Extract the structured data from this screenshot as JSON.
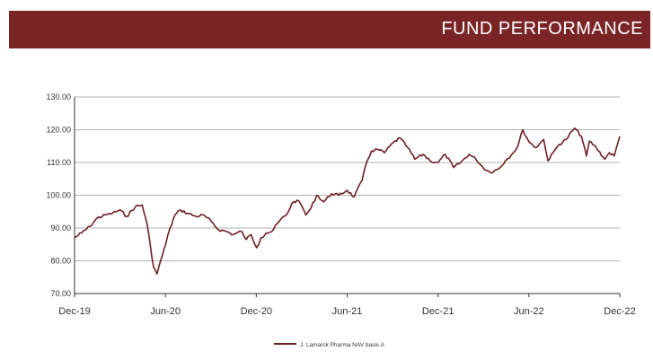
{
  "header": {
    "title": "FUND PERFORMANCE"
  },
  "colors": {
    "banner": "#7a2426",
    "series": "#6e1f22",
    "grid": "#9a9a9a",
    "axis": "#333333"
  },
  "chart_data": {
    "type": "line",
    "title": "",
    "xlabel": "",
    "ylabel": "",
    "ylim": [
      70,
      130
    ],
    "xlim": [
      "2019-12-01",
      "2022-12-01"
    ],
    "y_ticks": [
      "70.00",
      "80.00",
      "90.00",
      "100.00",
      "110.00",
      "120.00",
      "130.00"
    ],
    "x_ticks": [
      "Dec-19",
      "Jun-20",
      "Dec-20",
      "Jun-21",
      "Dec-21",
      "Jun-22",
      "Dec-22"
    ],
    "grid": "horizontal",
    "legend_position": "bottom",
    "series": [
      {
        "name": "J. Lamarck Pharma NAV basis A",
        "points": [
          [
            "2019-12-01",
            87.0
          ],
          [
            "2019-12-15",
            88.5
          ],
          [
            "2020-01-01",
            90.5
          ],
          [
            "2020-01-15",
            93.0
          ],
          [
            "2020-02-01",
            94.0
          ],
          [
            "2020-02-15",
            94.5
          ],
          [
            "2020-03-01",
            95.5
          ],
          [
            "2020-03-15",
            93.5
          ],
          [
            "2020-04-01",
            96.5
          ],
          [
            "2020-04-15",
            97.0
          ],
          [
            "2020-04-25",
            91.0
          ],
          [
            "2020-05-01",
            85.0
          ],
          [
            "2020-05-08",
            78.0
          ],
          [
            "2020-05-15",
            76.0
          ],
          [
            "2020-05-22",
            80.0
          ],
          [
            "2020-06-01",
            85.0
          ],
          [
            "2020-06-10",
            90.0
          ],
          [
            "2020-06-20",
            94.0
          ],
          [
            "2020-07-01",
            95.5
          ],
          [
            "2020-07-15",
            94.5
          ],
          [
            "2020-08-01",
            93.5
          ],
          [
            "2020-08-15",
            94.0
          ],
          [
            "2020-09-01",
            92.0
          ],
          [
            "2020-09-15",
            89.5
          ],
          [
            "2020-10-01",
            89.0
          ],
          [
            "2020-10-15",
            88.0
          ],
          [
            "2020-11-01",
            89.0
          ],
          [
            "2020-11-10",
            86.5
          ],
          [
            "2020-11-20",
            88.0
          ],
          [
            "2020-12-01",
            84.0
          ],
          [
            "2020-12-10",
            87.0
          ],
          [
            "2020-12-20",
            88.5
          ],
          [
            "2021-01-01",
            89.0
          ],
          [
            "2021-01-15",
            92.0
          ],
          [
            "2021-02-01",
            94.5
          ],
          [
            "2021-02-10",
            97.5
          ],
          [
            "2021-02-20",
            98.5
          ],
          [
            "2021-03-01",
            97.0
          ],
          [
            "2021-03-10",
            94.0
          ],
          [
            "2021-03-20",
            96.0
          ],
          [
            "2021-04-01",
            100.0
          ],
          [
            "2021-04-15",
            98.0
          ],
          [
            "2021-05-01",
            100.5
          ],
          [
            "2021-05-15",
            100.0
          ],
          [
            "2021-06-01",
            101.5
          ],
          [
            "2021-06-15",
            99.5
          ],
          [
            "2021-07-01",
            104.5
          ],
          [
            "2021-07-10",
            110.0
          ],
          [
            "2021-07-20",
            113.5
          ],
          [
            "2021-08-01",
            114.0
          ],
          [
            "2021-08-15",
            113.0
          ],
          [
            "2021-09-01",
            116.0
          ],
          [
            "2021-09-15",
            117.5
          ],
          [
            "2021-10-01",
            114.5
          ],
          [
            "2021-10-15",
            111.0
          ],
          [
            "2021-11-01",
            112.5
          ],
          [
            "2021-11-15",
            110.5
          ],
          [
            "2021-12-01",
            110.0
          ],
          [
            "2021-12-15",
            112.5
          ],
          [
            "2022-01-01",
            108.5
          ],
          [
            "2022-01-15",
            110.0
          ],
          [
            "2022-02-01",
            112.5
          ],
          [
            "2022-02-15",
            111.0
          ],
          [
            "2022-03-01",
            108.5
          ],
          [
            "2022-03-15",
            107.0
          ],
          [
            "2022-04-01",
            108.0
          ],
          [
            "2022-04-15",
            110.5
          ],
          [
            "2022-05-01",
            113.0
          ],
          [
            "2022-05-10",
            115.0
          ],
          [
            "2022-05-20",
            120.0
          ],
          [
            "2022-06-01",
            116.5
          ],
          [
            "2022-06-15",
            114.5
          ],
          [
            "2022-07-01",
            117.0
          ],
          [
            "2022-07-10",
            110.5
          ],
          [
            "2022-07-20",
            113.0
          ],
          [
            "2022-08-01",
            115.5
          ],
          [
            "2022-08-15",
            117.0
          ],
          [
            "2022-09-01",
            120.5
          ],
          [
            "2022-09-15",
            118.0
          ],
          [
            "2022-09-25",
            112.0
          ],
          [
            "2022-10-01",
            116.5
          ],
          [
            "2022-10-15",
            114.5
          ],
          [
            "2022-11-01",
            111.0
          ],
          [
            "2022-11-10",
            113.0
          ],
          [
            "2022-11-20",
            112.0
          ],
          [
            "2022-12-01",
            118.0
          ]
        ]
      }
    ]
  }
}
